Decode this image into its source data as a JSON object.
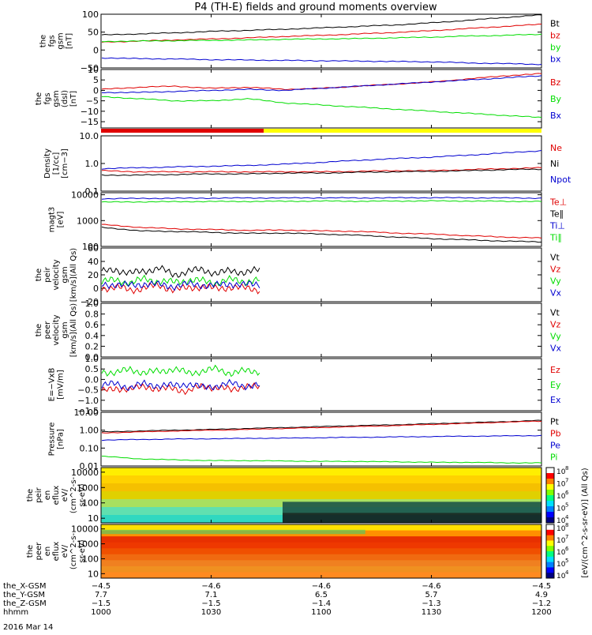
{
  "chart_data": {
    "type": "line",
    "title": "P4 (TH-E) fields and ground moments overview",
    "colors": {
      "black": "#000000",
      "red": "#e00000",
      "green": "#00dd00",
      "blue": "#0000d0",
      "yellow": "#ffff00"
    },
    "time_ticks": [
      "1000",
      "1030",
      "1100",
      "1130",
      "1200"
    ],
    "panels": [
      {
        "id": "fgs-gsm",
        "ylabel": [
          "the",
          "fgs",
          "gsm",
          "[nT]"
        ],
        "ylim": [
          -50,
          100
        ],
        "yticks": [
          {
            "v": 100,
            "t": "100"
          },
          {
            "v": 50,
            "t": "50"
          },
          {
            "v": 0,
            "t": "0"
          },
          {
            "v": -50,
            "t": "−50"
          }
        ],
        "series": [
          {
            "name": "Bt",
            "color": "#000000",
            "values": [
              42,
              45,
              48,
              52,
              55,
              58,
              62,
              66,
              70,
              76,
              83,
              91,
              98
            ]
          },
          {
            "name": "bz",
            "color": "#e00000",
            "values": [
              22,
              25,
              28,
              31,
              34,
              38,
              41,
              45,
              49,
              54,
              60,
              66,
              72
            ]
          },
          {
            "name": "by",
            "color": "#00dd00",
            "values": [
              24,
              25,
              26,
              27,
              28,
              30,
              31,
              32,
              34,
              36,
              39,
              41,
              44
            ]
          },
          {
            "name": "bx",
            "color": "#0000d0",
            "values": [
              -22,
              -24,
              -25,
              -27,
              -28,
              -29,
              -30,
              -31,
              -32,
              -33,
              -36,
              -38,
              -40
            ]
          }
        ]
      },
      {
        "id": "fgs-dsl",
        "ylabel": [
          "the",
          "fgs",
          "gsm",
          "(dsl)",
          "[nT]"
        ],
        "ylim": [
          -18,
          10
        ],
        "yticks": [
          {
            "v": 10,
            "t": "10"
          },
          {
            "v": 5,
            "t": "5"
          },
          {
            "v": 0,
            "t": "0"
          },
          {
            "v": -5,
            "t": "−5"
          },
          {
            "v": -10,
            "t": "−10"
          },
          {
            "v": -15,
            "t": "−15"
          }
        ],
        "series": [
          {
            "name": "Bz",
            "color": "#e00000",
            "values": [
              0.5,
              1.5,
              2.0,
              1.0,
              1.5,
              0.5,
              1.0,
              2.0,
              3.0,
              4.0,
              5.5,
              7.0,
              8.0
            ]
          },
          {
            "name": "By",
            "color": "#00dd00",
            "values": [
              -3,
              -4,
              -5,
              -5,
              -4,
              -6,
              -7,
              -8,
              -9,
              -10,
              -11,
              -12,
              -13
            ]
          },
          {
            "name": "Bx",
            "color": "#0000d0",
            "values": [
              -1,
              -1,
              -0.5,
              0,
              0.5,
              0,
              1,
              2,
              3,
              4,
              5,
              6,
              7
            ]
          }
        ]
      },
      {
        "id": "density",
        "scale": "log",
        "ylabel": [
          "Density",
          "[1/cc]",
          "[cm−3]"
        ],
        "ylim": [
          0.1,
          10
        ],
        "yticks": [
          {
            "v": 10,
            "t": "10.0"
          },
          {
            "v": 1,
            "t": "1.0"
          },
          {
            "v": 0.1,
            "t": "0.1"
          }
        ],
        "series": [
          {
            "name": "Ne",
            "color": "#e00000",
            "values": [
              0.55,
              0.5,
              0.5,
              0.5,
              0.5,
              0.5,
              0.5,
              0.52,
              0.55,
              0.55,
              0.6,
              0.65,
              0.7
            ]
          },
          {
            "name": "Ni",
            "color": "#000000",
            "values": [
              0.38,
              0.38,
              0.4,
              0.42,
              0.42,
              0.45,
              0.45,
              0.48,
              0.5,
              0.52,
              0.55,
              0.6,
              0.62
            ]
          },
          {
            "name": "Npot",
            "color": "#0000d0",
            "values": [
              0.65,
              0.7,
              0.75,
              0.8,
              0.85,
              0.95,
              1.1,
              1.3,
              1.5,
              1.7,
              2.0,
              2.4,
              2.9
            ]
          }
        ]
      },
      {
        "id": "temperature",
        "scale": "log",
        "ylabel": [
          "magt3",
          "[eV]"
        ],
        "ylim": [
          100,
          12000
        ],
        "yticks": [
          {
            "v": 10000,
            "t": "10000"
          },
          {
            "v": 1000,
            "t": "1000"
          },
          {
            "v": 100,
            "t": "100"
          }
        ],
        "series": [
          {
            "name": "Te⊥",
            "color": "#e00000",
            "values": [
              700,
              550,
              480,
              450,
              420,
              430,
              400,
              380,
              330,
              300,
              260,
              230,
              210
            ]
          },
          {
            "name": "Te∥",
            "color": "#000000",
            "values": [
              550,
              400,
              380,
              350,
              320,
              330,
              300,
              270,
              230,
              200,
              180,
              160,
              150
            ]
          },
          {
            "name": "Ti⊥",
            "color": "#0000d0",
            "values": [
              7000,
              7200,
              7300,
              7400,
              7500,
              7500,
              7600,
              7500,
              7600,
              7700,
              7600,
              7500,
              7400
            ]
          },
          {
            "name": "Ti∥",
            "color": "#00dd00",
            "values": [
              5200,
              5300,
              5400,
              5500,
              5500,
              5600,
              5700,
              5600,
              5700,
              5800,
              5700,
              5600,
              5500
            ]
          }
        ]
      },
      {
        "id": "peir-velocity",
        "ylabel": [
          "the",
          "peir",
          "velocity",
          "gsm",
          "[km/s](All Qs)"
        ],
        "ylim": [
          -20,
          60
        ],
        "xlim_frac": 0.36,
        "yticks": [
          {
            "v": 60,
            "t": "60"
          },
          {
            "v": 40,
            "t": "40"
          },
          {
            "v": 20,
            "t": "20"
          },
          {
            "v": 0,
            "t": "0"
          },
          {
            "v": -20,
            "t": "−20"
          }
        ],
        "series": [
          {
            "name": "Vt",
            "color": "#000000",
            "values": [
              24,
              28,
              22,
              26,
              30,
              20,
              25,
              28,
              22,
              26,
              24,
              27
            ]
          },
          {
            "name": "Vz",
            "color": "#e00000",
            "values": [
              0,
              2,
              -3,
              1,
              4,
              -2,
              0,
              3,
              -1,
              2,
              0,
              -2
            ]
          },
          {
            "name": "Vy",
            "color": "#00dd00",
            "values": [
              10,
              12,
              8,
              14,
              10,
              9,
              12,
              11,
              8,
              13,
              10,
              12
            ]
          },
          {
            "name": "Vx",
            "color": "#0000d0",
            "values": [
              5,
              6,
              4,
              7,
              5,
              3,
              6,
              5,
              4,
              7,
              5,
              6
            ]
          }
        ]
      },
      {
        "id": "peer-velocity",
        "ylabel": [
          "the",
          "peer",
          "velocity",
          "gsm",
          "[km/s](All Qs)"
        ],
        "ylim": [
          0,
          1
        ],
        "yticks": [
          {
            "v": 1,
            "t": "1.0"
          },
          {
            "v": 0.8,
            "t": "0.8"
          },
          {
            "v": 0.6,
            "t": "0.6"
          },
          {
            "v": 0.4,
            "t": "0.4"
          },
          {
            "v": 0.2,
            "t": "0.2"
          },
          {
            "v": 0,
            "t": "0.0"
          }
        ],
        "series": [
          {
            "name": "Vt",
            "color": "#000000",
            "values": []
          },
          {
            "name": "Vz",
            "color": "#e00000",
            "values": []
          },
          {
            "name": "Vy",
            "color": "#00dd00",
            "values": []
          },
          {
            "name": "Vx",
            "color": "#0000d0",
            "values": []
          }
        ]
      },
      {
        "id": "efield",
        "ylabel": [
          "E=−VxB",
          "[mV/m]"
        ],
        "ylim": [
          -1.5,
          1.0
        ],
        "xlim_frac": 0.36,
        "yticks": [
          {
            "v": 1,
            "t": "1.0"
          },
          {
            "v": 0.5,
            "t": "0.5"
          },
          {
            "v": 0,
            "t": "0.0"
          },
          {
            "v": -0.5,
            "t": "−0.5"
          },
          {
            "v": -1,
            "t": "−1.0"
          },
          {
            "v": -1.5,
            "t": "−1.5"
          }
        ],
        "series": [
          {
            "name": "Ez",
            "color": "#e00000",
            "values": [
              -0.6,
              -0.4,
              -0.5,
              -0.3,
              -0.5,
              -0.4,
              -0.6,
              -0.3,
              -0.4,
              -0.5,
              -0.3,
              -0.4
            ]
          },
          {
            "name": "Ey",
            "color": "#00dd00",
            "values": [
              0.4,
              0.3,
              0.5,
              0.3,
              0.4,
              0.5,
              0.3,
              0.4,
              0.5,
              0.3,
              0.4,
              0.4
            ]
          },
          {
            "name": "Ex",
            "color": "#0000d0",
            "values": [
              -0.3,
              -0.2,
              -0.4,
              -0.2,
              -0.3,
              -0.3,
              -0.2,
              -0.4,
              -0.3,
              -0.2,
              -0.3,
              -0.3
            ]
          }
        ]
      },
      {
        "id": "pressure",
        "scale": "log",
        "ylabel": [
          "Pressure",
          "[nPa]"
        ],
        "ylim": [
          0.01,
          10
        ],
        "yticks": [
          {
            "v": 10,
            "t": "10.00"
          },
          {
            "v": 1,
            "t": "1.00"
          },
          {
            "v": 0.1,
            "t": "0.10"
          },
          {
            "v": 0.01,
            "t": "0.01"
          }
        ],
        "series": [
          {
            "name": "Pt",
            "color": "#000000",
            "values": [
              0.8,
              0.9,
              1.0,
              1.1,
              1.25,
              1.4,
              1.6,
              1.8,
              2.0,
              2.3,
              2.6,
              3.0,
              3.5
            ]
          },
          {
            "name": "Pb",
            "color": "#e00000",
            "values": [
              0.7,
              0.8,
              0.9,
              1.0,
              1.1,
              1.25,
              1.4,
              1.6,
              1.8,
              2.1,
              2.4,
              2.8,
              3.2
            ]
          },
          {
            "name": "Pe",
            "color": "#0000d0",
            "values": [
              0.28,
              0.3,
              0.32,
              0.33,
              0.35,
              0.36,
              0.38,
              0.4,
              0.42,
              0.44,
              0.46,
              0.48,
              0.5
            ]
          },
          {
            "name": "Pi",
            "color": "#00dd00",
            "values": [
              0.035,
              0.025,
              0.022,
              0.02,
              0.02,
              0.019,
              0.018,
              0.018,
              0.017,
              0.016,
              0.016,
              0.015,
              0.015
            ]
          }
        ]
      }
    ],
    "spectrograms": [
      {
        "id": "peir-en-eflux",
        "ylabel": [
          "the",
          "peir",
          "en",
          "eflux",
          "eV/",
          "(cm^2-s-",
          "sr-eV)"
        ],
        "yticks": [
          {
            "v": 10000,
            "t": "10000"
          },
          {
            "v": 1000,
            "t": "1000"
          },
          {
            "v": 100,
            "t": "100"
          },
          {
            "v": 10,
            "t": "10"
          }
        ]
      },
      {
        "id": "peer-en-eflux",
        "ylabel": [
          "the",
          "peer",
          "en",
          "eflux",
          "eV/",
          "(cm^2-s-",
          "sr-eV)"
        ],
        "yticks": [
          {
            "v": 10000,
            "t": "10000"
          },
          {
            "v": 1000,
            "t": "1000"
          },
          {
            "v": 100,
            "t": "100"
          },
          {
            "v": 10,
            "t": "10"
          }
        ]
      }
    ],
    "colorbar": {
      "label": "[eV/(cm^2-s-sr-eV)] (All Qs)",
      "ticks_top": [
        "10",
        "10",
        "10",
        "10",
        "10"
      ],
      "exp_top": [
        "8",
        "7",
        "6",
        "5",
        "4"
      ],
      "ticks_bottom": [
        "10",
        "10",
        "10",
        "10",
        "10"
      ],
      "exp_bottom": [
        "8",
        "7",
        "6",
        "5",
        "4"
      ]
    },
    "orbit_rows": [
      {
        "label": "the_X-GSM",
        "values": [
          "−4.5",
          "−4.6",
          "−4.6",
          "−4.6",
          "−4.5"
        ]
      },
      {
        "label": "the_Y-GSM",
        "values": [
          "7.7",
          "7.1",
          "6.5",
          "5.7",
          "4.9"
        ]
      },
      {
        "label": "the_Z-GSM",
        "values": [
          "−1.5",
          "−1.5",
          "−1.4",
          "−1.3",
          "−1.2"
        ]
      },
      {
        "label": "hhmm",
        "values": [
          "1000",
          "1030",
          "1100",
          "1130",
          "1200"
        ]
      }
    ],
    "date": "2016 Mar 14"
  }
}
